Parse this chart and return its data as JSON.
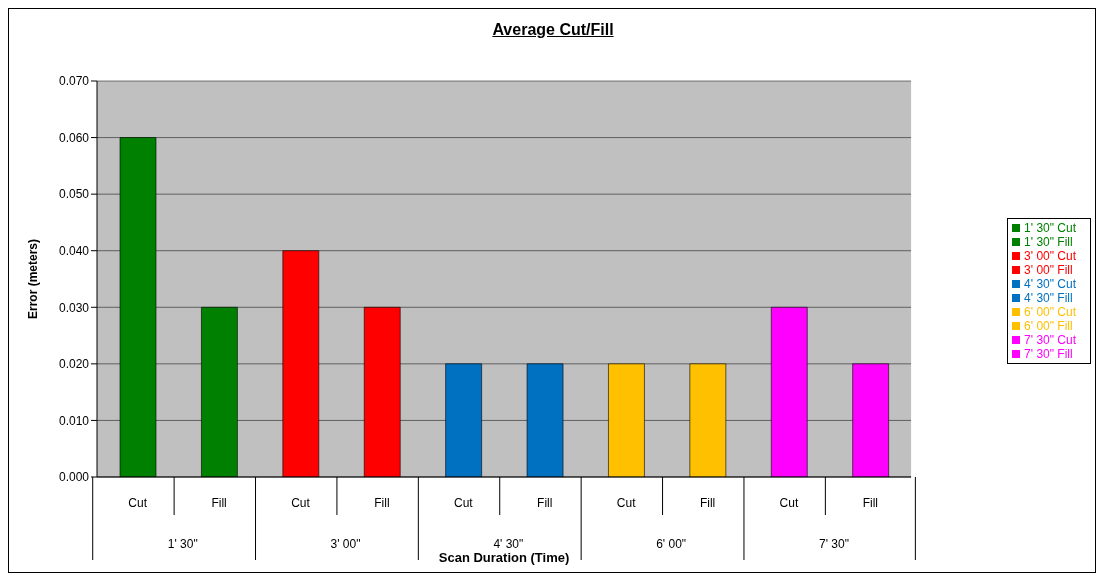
{
  "chart_data": {
    "type": "bar",
    "title": "Average Cut/Fill",
    "xlabel": "Scan Duration (Time)",
    "ylabel": "Error (meters)",
    "categories": [
      "Cut",
      "Fill",
      "Cut",
      "Fill",
      "Cut",
      "Fill",
      "Cut",
      "Fill",
      "Cut",
      "Fill"
    ],
    "annotations": [
      "1' 30\"",
      "3' 00\"",
      "4' 30\"",
      "6' 00\"",
      "7' 30\""
    ],
    "series": [
      {
        "name": "1' 30\" Cut",
        "color": "#008000",
        "values": [
          0.06,
          null,
          null,
          null,
          null,
          null,
          null,
          null,
          null,
          null
        ]
      },
      {
        "name": "1' 30\" Fill",
        "color": "#008000",
        "values": [
          null,
          0.03,
          null,
          null,
          null,
          null,
          null,
          null,
          null,
          null
        ]
      },
      {
        "name": "3' 00\" Cut",
        "color": "#ff0000",
        "values": [
          null,
          null,
          0.04,
          null,
          null,
          null,
          null,
          null,
          null,
          null
        ]
      },
      {
        "name": "3' 00\" Fill",
        "color": "#ff0000",
        "values": [
          null,
          null,
          null,
          0.03,
          null,
          null,
          null,
          null,
          null,
          null
        ]
      },
      {
        "name": "4' 30\" Cut",
        "color": "#0070c0",
        "values": [
          null,
          null,
          null,
          null,
          0.02,
          null,
          null,
          null,
          null,
          null
        ]
      },
      {
        "name": "4' 30\" Fill",
        "color": "#0070c0",
        "values": [
          null,
          null,
          null,
          null,
          null,
          0.02,
          null,
          null,
          null,
          null
        ]
      },
      {
        "name": "6' 00\" Cut",
        "color": "#ffc000",
        "values": [
          null,
          null,
          null,
          null,
          null,
          null,
          0.02,
          null,
          null,
          null
        ]
      },
      {
        "name": "6' 00\" Fill",
        "color": "#ffc000",
        "values": [
          null,
          null,
          null,
          null,
          null,
          null,
          null,
          0.02,
          null,
          null
        ]
      },
      {
        "name": "7' 30\" Cut",
        "color": "#ff00ff",
        "values": [
          null,
          null,
          null,
          null,
          null,
          null,
          null,
          null,
          0.03,
          null
        ]
      },
      {
        "name": "7' 30\" Fill",
        "color": "#ff00ff",
        "values": [
          null,
          null,
          null,
          null,
          null,
          null,
          null,
          null,
          null,
          0.02
        ]
      }
    ],
    "ylim": [
      0,
      0.07
    ],
    "yticks": [
      {
        "value": 0,
        "label": "0.000"
      },
      {
        "value": 0.01,
        "label": "0.010"
      },
      {
        "value": 0.02,
        "label": "0.020"
      },
      {
        "value": 0.03,
        "label": "0.030"
      },
      {
        "value": 0.04,
        "label": "0.040"
      },
      {
        "value": 0.05,
        "label": "0.050"
      },
      {
        "value": 0.06,
        "label": "0.060"
      },
      {
        "value": 0.07,
        "label": "0.070"
      }
    ],
    "grid": "y",
    "legend": "right"
  }
}
